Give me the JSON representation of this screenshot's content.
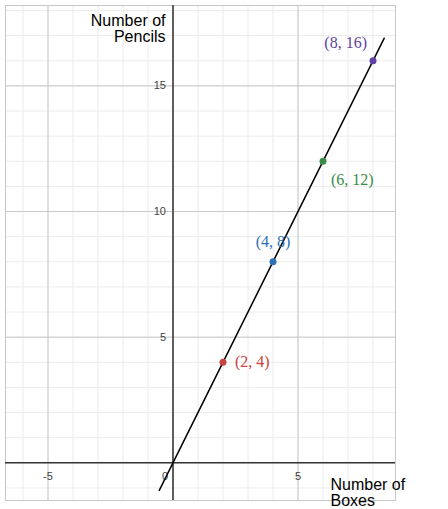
{
  "chart_data": {
    "type": "line",
    "x_label": "Number of Boxes",
    "y_label": "Number of Pencils",
    "xlim": [
      -6.7,
      8.9
    ],
    "ylim": [
      -1.5,
      18.2
    ],
    "xticks": [
      -5,
      0,
      5
    ],
    "yticks": [
      5,
      10,
      15
    ],
    "grid": true,
    "series": [
      {
        "type": "line",
        "x": [
          -0.55,
          8.45
        ],
        "values": [
          -1.1,
          16.9
        ],
        "color": "#000000"
      },
      {
        "type": "scatter",
        "x": [
          2,
          4,
          6,
          8
        ],
        "values": [
          4,
          8,
          12,
          16
        ],
        "colors": [
          "#c74440",
          "#2d70b3",
          "#388c46",
          "#6042a6"
        ],
        "value_labels": [
          "(2, 4)",
          "(4, 8)",
          "(6, 12)",
          "(8, 16)"
        ],
        "data_labels": true
      }
    ]
  }
}
